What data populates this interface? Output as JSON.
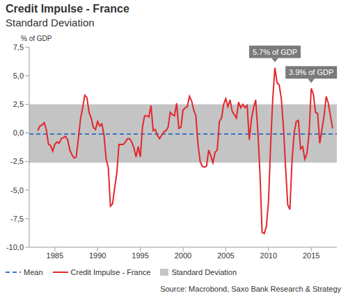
{
  "chart_data": {
    "type": "line",
    "title": "Credit Impulse - France",
    "subtitle": "Standard Deviation",
    "y_label": "% of GDP",
    "source": "Source: Macrobond, Saxo Bank Research & Strategy",
    "x": [
      1983,
      1983.25,
      1983.5,
      1983.75,
      1984,
      1984.25,
      1984.5,
      1984.75,
      1985,
      1985.25,
      1985.5,
      1985.75,
      1986,
      1986.25,
      1986.5,
      1986.75,
      1987,
      1987.25,
      1987.5,
      1987.75,
      1988,
      1988.25,
      1988.5,
      1988.75,
      1989,
      1989.25,
      1989.5,
      1989.75,
      1990,
      1990.25,
      1990.5,
      1990.75,
      1991,
      1991.25,
      1991.5,
      1991.75,
      1992,
      1992.25,
      1992.5,
      1992.75,
      1993,
      1993.25,
      1993.5,
      1993.75,
      1994,
      1994.25,
      1994.5,
      1994.75,
      1995,
      1995.25,
      1995.5,
      1995.75,
      1996,
      1996.25,
      1996.5,
      1996.75,
      1997,
      1997.25,
      1997.5,
      1997.75,
      1998,
      1998.25,
      1998.5,
      1998.75,
      1999,
      1999.25,
      1999.5,
      1999.75,
      2000,
      2000.25,
      2000.5,
      2000.75,
      2001,
      2001.25,
      2001.5,
      2001.75,
      2002,
      2002.25,
      2002.5,
      2002.75,
      2003,
      2003.25,
      2003.5,
      2003.75,
      2004,
      2004.25,
      2004.5,
      2004.75,
      2005,
      2005.25,
      2005.5,
      2005.75,
      2006,
      2006.25,
      2006.5,
      2006.75,
      2007,
      2007.25,
      2007.5,
      2007.75,
      2008,
      2008.25,
      2008.5,
      2008.75,
      2009,
      2009.25,
      2009.5,
      2009.75,
      2010,
      2010.25,
      2010.5,
      2010.75,
      2011,
      2011.25,
      2011.5,
      2011.75,
      2012,
      2012.25,
      2012.5,
      2012.75,
      2013,
      2013.25,
      2013.5,
      2013.75,
      2014,
      2014.25,
      2014.5,
      2014.75,
      2015,
      2015.25,
      2015.5,
      2015.75,
      2016,
      2016.25,
      2016.5,
      2016.75,
      2017,
      2017.25,
      2017.5
    ],
    "series": [
      {
        "name": "Credit Impulse - France",
        "color": "#e3262c",
        "values": [
          0.2,
          0.6,
          0.7,
          0.9,
          0.3,
          -1.0,
          -1.1,
          -1.6,
          -1.0,
          -0.8,
          -0.9,
          -0.5,
          -0.4,
          -0.3,
          -0.6,
          -1.5,
          -1.9,
          -2.2,
          -2.1,
          -0.5,
          1.2,
          2.2,
          3.3,
          3.1,
          1.8,
          1.3,
          0.5,
          0.3,
          1.0,
          0.6,
          0.8,
          -0.2,
          -2.3,
          -3.0,
          -6.4,
          -6.2,
          -4.8,
          -3.5,
          -1.0,
          -1.0,
          -1.0,
          -0.8,
          -0.5,
          -0.5,
          -0.8,
          -1.3,
          -2.1,
          -1.2,
          -2.1,
          0.5,
          1.5,
          1.5,
          1.4,
          2.4,
          0.2,
          0.3,
          -0.2,
          -0.5,
          -0.2,
          0.1,
          0.2,
          0.5,
          1.8,
          1.6,
          1.5,
          2.6,
          0.4,
          0.5,
          2.0,
          2.2,
          2.3,
          3.2,
          2.8,
          2.0,
          1.5,
          -1.0,
          -2.5,
          -2.9,
          -3.0,
          -2.9,
          -1.5,
          -2.0,
          -2.6,
          -1.7,
          -1.5,
          1.0,
          1.3,
          2.5,
          3.0,
          2.3,
          2.9,
          1.9,
          1.6,
          1.3,
          2.7,
          2.2,
          2.5,
          2.2,
          2.4,
          -0.6,
          1.2,
          2.2,
          2.9,
          0.2,
          -3.5,
          -8.7,
          -8.8,
          -8.2,
          -6.0,
          -1.0,
          3.0,
          5.7,
          4.4,
          4.2,
          3.0,
          0.5,
          -3.0,
          -6.3,
          -6.7,
          -2.5,
          0.0,
          1.0,
          1.1,
          -1.4,
          -1.2,
          -2.3,
          -1.8,
          0.0,
          3.9,
          3.4,
          1.8,
          1.7,
          -0.9,
          0.3,
          1.5,
          3.2,
          2.6,
          1.5,
          0.4
        ]
      }
    ],
    "mean": {
      "name": "Mean",
      "color": "#3a73c2",
      "value": -0.1,
      "line_style": "dashed"
    },
    "std_band": {
      "name": "Standard Deviation",
      "color": "#c4c4c4",
      "values": [
        -2.6,
        2.5
      ]
    },
    "annotations": [
      {
        "x": 2010.75,
        "y": 5.7,
        "text": "5.7% of GDP"
      },
      {
        "x": 2015,
        "y": 3.9,
        "text": "3.9% of GDP"
      }
    ],
    "xlim": [
      1982,
      2018
    ],
    "xticks": [
      1985,
      1990,
      1995,
      2000,
      2005,
      2010,
      2015
    ],
    "ylim": [
      -10,
      7.5
    ],
    "yticks": [
      {
        "value": -10,
        "label": "-10,0"
      },
      {
        "value": -7.5,
        "label": "-7,5"
      },
      {
        "value": -5,
        "label": "-5,0"
      },
      {
        "value": -2.5,
        "label": "-2,5"
      },
      {
        "value": 0,
        "label": "0,0"
      },
      {
        "value": 2.5,
        "label": "2,5"
      },
      {
        "value": 5,
        "label": "5,0"
      },
      {
        "value": 7.5,
        "label": "7,5"
      }
    ],
    "grid": false,
    "legend": "bottom"
  }
}
